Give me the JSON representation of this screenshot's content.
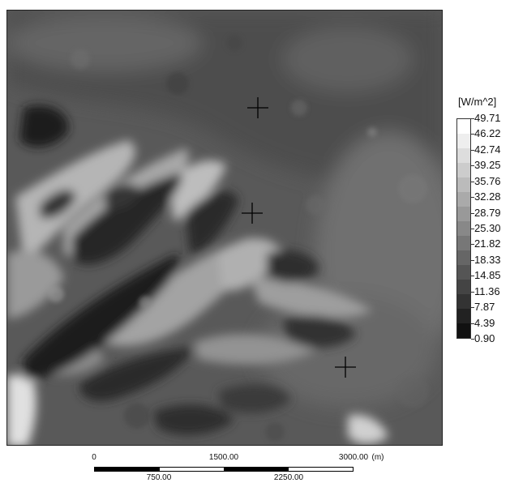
{
  "legend": {
    "title": "[W/m^2]",
    "labels": [
      "49.71",
      "46.22",
      "42.74",
      "39.25",
      "35.76",
      "32.28",
      "28.79",
      "25.30",
      "21.82",
      "18.33",
      "14.85",
      "11.36",
      "7.87",
      "4.39",
      "0.90"
    ],
    "colors": [
      "#ffffff",
      "#eeeeee",
      "#dddddd",
      "#cccccc",
      "#bbbbbb",
      "#aaaaaa",
      "#999999",
      "#888888",
      "#777777",
      "#666666",
      "#555555",
      "#444444",
      "#333333",
      "#222222",
      "#111111"
    ]
  },
  "scalebar": {
    "top_labels": [
      "0",
      "1500.00",
      "3000.00"
    ],
    "unit": "(m)",
    "bottom_labels": [
      "750.00",
      "2250.00"
    ]
  },
  "markers": [
    {
      "name": "crosshair-marker-north"
    },
    {
      "name": "crosshair-marker-center"
    },
    {
      "name": "crosshair-marker-southeast"
    }
  ]
}
